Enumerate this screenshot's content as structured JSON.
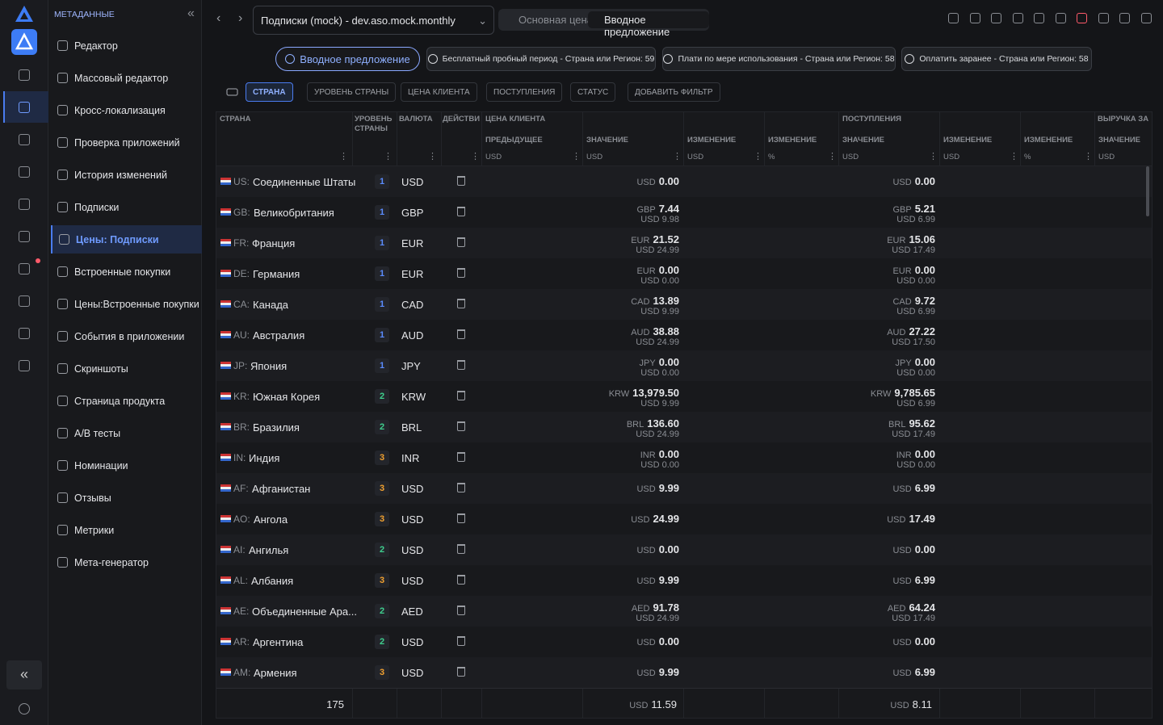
{
  "sidebar": {
    "title": "МЕТАДАННЫЕ",
    "items": [
      {
        "label": "Редактор"
      },
      {
        "label": "Массовый редактор"
      },
      {
        "label": "Кросс-локализация"
      },
      {
        "label": "Проверка приложений"
      },
      {
        "label": "История изменений"
      },
      {
        "label": "Подписки"
      },
      {
        "label": "Цены: Подписки",
        "active": true
      },
      {
        "label": "Встроенные покупки"
      },
      {
        "label": "Цены:Встроенные покупки"
      },
      {
        "label": "События в приложении"
      },
      {
        "label": "Скриншоты"
      },
      {
        "label": "Страница продукта"
      },
      {
        "label": "A/B тесты"
      },
      {
        "label": "Номинации"
      },
      {
        "label": "Отзывы"
      },
      {
        "label": "Метрики"
      },
      {
        "label": "Мета-генератор"
      }
    ]
  },
  "toolbar": {
    "subscription": "Подписки (mock) - dev.aso.mock.monthly",
    "tabs": [
      {
        "label": "Основная цена"
      },
      {
        "label": "Вводное предложение",
        "active": true
      }
    ]
  },
  "offers": [
    {
      "label": "Вводное предложение",
      "active": true
    },
    {
      "label": "Бесплатный пробный период - Страна или Регион: 59"
    },
    {
      "label": "Плати по мере использования - Страна или Регион: 58"
    },
    {
      "label": "Оплатить заранее - Страна или Регион: 58"
    }
  ],
  "filters": [
    {
      "label": "СТРАНА",
      "active": true
    },
    {
      "label": "УРОВЕНЬ СТРАНЫ"
    },
    {
      "label": "ЦЕНА КЛИЕНТА"
    },
    {
      "label": "ПОСТУПЛЕНИЯ"
    },
    {
      "label": "СТАТУС"
    },
    {
      "label": "ДОБАВИТЬ ФИЛЬТР"
    }
  ],
  "table": {
    "groups": [
      "СТРАНА",
      "УРОВЕНЬ СТРАНЫ",
      "ВАЛЮТА",
      "ДЕЙСТВИ",
      "ЦЕНА КЛИЕНТА",
      "ПОСТУПЛЕНИЯ",
      "ВЫРУЧКА ЗА"
    ],
    "subheaders": [
      {
        "label": "ПРЕДЫДУЩЕЕ",
        "unit": "USD"
      },
      {
        "label": "ЗНАЧЕНИЕ",
        "unit": "USD"
      },
      {
        "label": "ИЗМЕНЕНИЕ",
        "unit": "USD"
      },
      {
        "label": "ИЗМЕНЕНИЕ",
        "unit": "%"
      },
      {
        "label": "ЗНАЧЕНИЕ",
        "unit": "USD"
      },
      {
        "label": "ИЗМЕНЕНИЕ",
        "unit": "USD"
      },
      {
        "label": "ИЗМЕНЕНИЕ",
        "unit": "%"
      },
      {
        "label": "ЗНАЧЕНИЕ",
        "unit": "USD"
      }
    ],
    "tier_colors": {
      "1": "#5b8cff",
      "2": "#3fcf8e",
      "3": "#f0a030"
    },
    "rows": [
      {
        "code": "US:",
        "country": "Соединенные Штаты",
        "tier": 1,
        "currency": "USD",
        "price": {
          "currency": "USD",
          "value": "0.00"
        },
        "proceeds": {
          "currency": "USD",
          "value": "0.00"
        }
      },
      {
        "code": "GB:",
        "country": "Великобритания",
        "tier": 1,
        "currency": "GBP",
        "price": {
          "currency": "GBP",
          "value": "7.44",
          "usd": "USD 9.98"
        },
        "proceeds": {
          "currency": "GBP",
          "value": "5.21",
          "usd": "USD 6.99"
        }
      },
      {
        "code": "FR:",
        "country": "Франция",
        "tier": 1,
        "currency": "EUR",
        "price": {
          "currency": "EUR",
          "value": "21.52",
          "usd": "USD 24.99"
        },
        "proceeds": {
          "currency": "EUR",
          "value": "15.06",
          "usd": "USD 17.49"
        }
      },
      {
        "code": "DE:",
        "country": "Германия",
        "tier": 1,
        "currency": "EUR",
        "price": {
          "currency": "EUR",
          "value": "0.00",
          "usd": "USD 0.00"
        },
        "proceeds": {
          "currency": "EUR",
          "value": "0.00",
          "usd": "USD 0.00"
        }
      },
      {
        "code": "CA:",
        "country": "Канада",
        "tier": 1,
        "currency": "CAD",
        "price": {
          "currency": "CAD",
          "value": "13.89",
          "usd": "USD 9.99"
        },
        "proceeds": {
          "currency": "CAD",
          "value": "9.72",
          "usd": "USD 6.99"
        }
      },
      {
        "code": "AU:",
        "country": "Австралия",
        "tier": 1,
        "currency": "AUD",
        "price": {
          "currency": "AUD",
          "value": "38.88",
          "usd": "USD 24.99"
        },
        "proceeds": {
          "currency": "AUD",
          "value": "27.22",
          "usd": "USD 17.50"
        }
      },
      {
        "code": "JP:",
        "country": "Япония",
        "tier": 1,
        "currency": "JPY",
        "price": {
          "currency": "JPY",
          "value": "0.00",
          "usd": "USD 0.00"
        },
        "proceeds": {
          "currency": "JPY",
          "value": "0.00",
          "usd": "USD 0.00"
        }
      },
      {
        "code": "KR:",
        "country": "Южная Корея",
        "tier": 2,
        "currency": "KRW",
        "price": {
          "currency": "KRW",
          "value": "13,979.50",
          "usd": "USD 9.99"
        },
        "proceeds": {
          "currency": "KRW",
          "value": "9,785.65",
          "usd": "USD 6.99"
        }
      },
      {
        "code": "BR:",
        "country": "Бразилия",
        "tier": 2,
        "currency": "BRL",
        "price": {
          "currency": "BRL",
          "value": "136.60",
          "usd": "USD 24.99"
        },
        "proceeds": {
          "currency": "BRL",
          "value": "95.62",
          "usd": "USD 17.49"
        }
      },
      {
        "code": "IN:",
        "country": "Индия",
        "tier": 3,
        "currency": "INR",
        "price": {
          "currency": "INR",
          "value": "0.00",
          "usd": "USD 0.00"
        },
        "proceeds": {
          "currency": "INR",
          "value": "0.00",
          "usd": "USD 0.00"
        }
      },
      {
        "code": "AF:",
        "country": "Афганистан",
        "tier": 3,
        "currency": "USD",
        "price": {
          "currency": "USD",
          "value": "9.99"
        },
        "proceeds": {
          "currency": "USD",
          "value": "6.99"
        }
      },
      {
        "code": "AO:",
        "country": "Ангола",
        "tier": 3,
        "currency": "USD",
        "price": {
          "currency": "USD",
          "value": "24.99"
        },
        "proceeds": {
          "currency": "USD",
          "value": "17.49"
        }
      },
      {
        "code": "AI:",
        "country": "Ангилья",
        "tier": 2,
        "currency": "USD",
        "price": {
          "currency": "USD",
          "value": "0.00"
        },
        "proceeds": {
          "currency": "USD",
          "value": "0.00"
        }
      },
      {
        "code": "AL:",
        "country": "Албания",
        "tier": 3,
        "currency": "USD",
        "price": {
          "currency": "USD",
          "value": "9.99"
        },
        "proceeds": {
          "currency": "USD",
          "value": "6.99"
        }
      },
      {
        "code": "AE:",
        "country": "Объединенные Ара...",
        "tier": 2,
        "currency": "AED",
        "price": {
          "currency": "AED",
          "value": "91.78",
          "usd": "USD 24.99"
        },
        "proceeds": {
          "currency": "AED",
          "value": "64.24",
          "usd": "USD 17.49"
        }
      },
      {
        "code": "AR:",
        "country": "Аргентина",
        "tier": 2,
        "currency": "USD",
        "price": {
          "currency": "USD",
          "value": "0.00"
        },
        "proceeds": {
          "currency": "USD",
          "value": "0.00"
        }
      },
      {
        "code": "AM:",
        "country": "Армения",
        "tier": 3,
        "currency": "USD",
        "price": {
          "currency": "USD",
          "value": "9.99"
        },
        "proceeds": {
          "currency": "USD",
          "value": "6.99"
        }
      }
    ],
    "footer": {
      "count": "175",
      "price": {
        "currency": "USD",
        "value": "11.59"
      },
      "proceeds": {
        "currency": "USD",
        "value": "8.11"
      }
    }
  }
}
